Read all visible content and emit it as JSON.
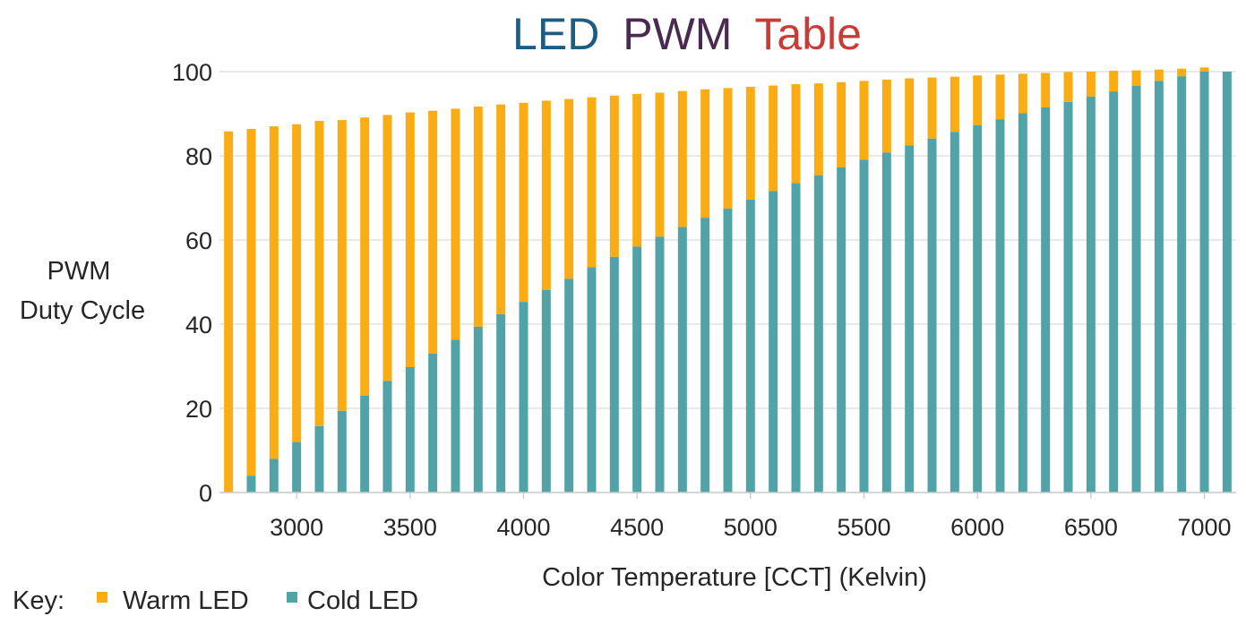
{
  "chart_data": {
    "type": "bar",
    "stacked": true,
    "title_parts": [
      {
        "text": "LED",
        "color": "#1f5c82"
      },
      {
        "text": "PWM",
        "color": "#4a2a50"
      },
      {
        "text": "Table",
        "color": "#c83c38"
      }
    ],
    "xlabel": "Color Temperature [CCT] (Kelvin)",
    "ylabel_lines": [
      "PWM",
      "Duty Cycle"
    ],
    "xlim": [
      2700,
      7100
    ],
    "ylim": [
      0,
      100
    ],
    "xticks": [
      "3000",
      "3500",
      "4000",
      "4500",
      "5000",
      "5500",
      "6000",
      "6500",
      "7000"
    ],
    "yticks": [
      "0",
      "20",
      "40",
      "60",
      "80",
      "100"
    ],
    "grid": "horizontal",
    "x": [
      2700,
      2800,
      2900,
      3000,
      3100,
      3200,
      3300,
      3400,
      3500,
      3600,
      3700,
      3800,
      3900,
      4000,
      4100,
      4200,
      4300,
      4400,
      4500,
      4600,
      4700,
      4800,
      4900,
      5000,
      5100,
      5200,
      5300,
      5400,
      5500,
      5600,
      5700,
      5800,
      5900,
      6000,
      6100,
      6200,
      6300,
      6400,
      6500,
      6600,
      6700,
      6800,
      6900,
      7000,
      7100
    ],
    "series": [
      {
        "name": "Cold LED",
        "color": "#52a3a7",
        "values": [
          0,
          4,
          8,
          12,
          15.8,
          19.4,
          23,
          26.5,
          29.8,
          33,
          36.3,
          39.4,
          42.4,
          45.3,
          48.1,
          50.8,
          53.5,
          56,
          58.4,
          60.8,
          63.1,
          65.3,
          67.5,
          69.6,
          71.6,
          73.5,
          75.4,
          77.3,
          79.1,
          80.8,
          82.5,
          84.1,
          85.7,
          87.3,
          88.7,
          90.1,
          91.5,
          92.8,
          94.1,
          95.3,
          96.6,
          97.8,
          98.9,
          100,
          100
        ]
      },
      {
        "name": "Warm LED",
        "color": "#f9ac13",
        "values": [
          85.8,
          82.4,
          79,
          75.5,
          72.5,
          69.1,
          66.1,
          63.2,
          60.5,
          57.7,
          54.9,
          52.3,
          49.8,
          47.3,
          45,
          42.7,
          40.4,
          38.3,
          36.3,
          34.2,
          32.3,
          30.5,
          28.6,
          26.8,
          25.1,
          23.5,
          21.8,
          20.2,
          18.7,
          17.3,
          15.9,
          14.5,
          13.1,
          11.8,
          10.6,
          9.4,
          8.2,
          7.1,
          5.9,
          4.9,
          3.7,
          2.7,
          1.8,
          1,
          0
        ]
      }
    ],
    "legend": {
      "label": "Key:",
      "placement": "bottom-left",
      "entries": [
        {
          "name": "Warm LED",
          "color": "#f9ac13"
        },
        {
          "name": "Cold LED",
          "color": "#52a3a7"
        }
      ]
    }
  }
}
